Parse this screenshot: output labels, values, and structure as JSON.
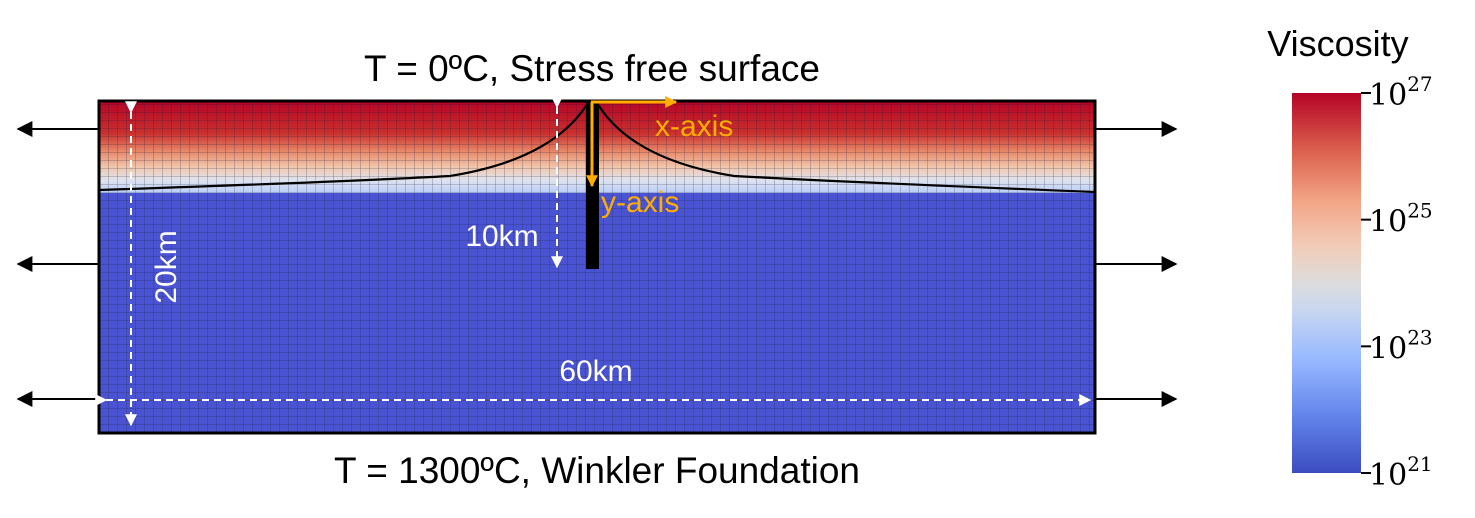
{
  "labels": {
    "top_boundary": "T = 0ºC, Stress free surface",
    "bottom_boundary": "T = 1300ºC, Winkler Foundation",
    "depth_total": "20km",
    "width_total": "60km",
    "depth_crack": "10km",
    "x_axis": "x-axis",
    "y_axis": "y-axis"
  },
  "colorbar": {
    "title": "Viscosity",
    "base": "10",
    "ticks": [
      {
        "exp": "27",
        "frac": 1.0
      },
      {
        "exp": "25",
        "frac": 0.6667
      },
      {
        "exp": "23",
        "frac": 0.3333
      },
      {
        "exp": "21",
        "frac": 0.0
      }
    ],
    "colormap": "coolwarm"
  },
  "colors": {
    "mesh_blue": "#4a54d2",
    "mesh_red": "#b8141f",
    "axis_arrow": "#ffae00",
    "dashed": "#ffffff"
  }
}
